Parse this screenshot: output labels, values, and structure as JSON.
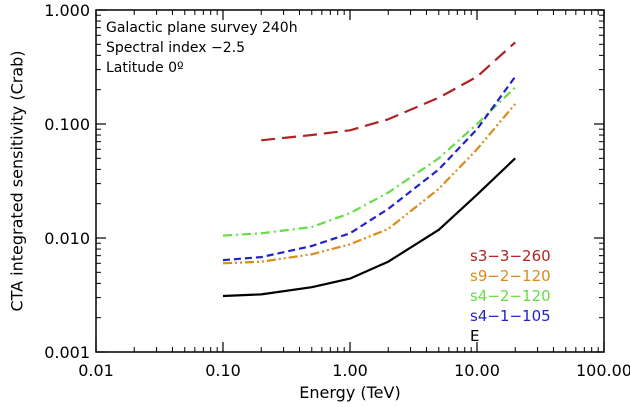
{
  "chart_data": {
    "type": "line",
    "xlabel": "Energy (TeV)",
    "ylabel": "CTA integrated sensitivity (Crab)",
    "xscale": "log",
    "yscale": "log",
    "xlim": [
      0.01,
      100
    ],
    "ylim": [
      0.001,
      1
    ],
    "x_tick_labels": [
      "0.01",
      "0.10",
      "1.00",
      "10.00",
      "100.00"
    ],
    "x_tick_values": [
      0.01,
      0.1,
      1,
      10,
      100
    ],
    "y_tick_labels": [
      "0.001",
      "0.010",
      "0.100",
      "1.000"
    ],
    "y_tick_values": [
      0.001,
      0.01,
      0.1,
      1
    ],
    "annotations": [
      "Galactic plane survey 240h",
      "Spectral index −2.5",
      "Latitude 0º"
    ],
    "legend_position": "bottom-right",
    "series": [
      {
        "name": "s3−3−260",
        "color": "#b22222",
        "style": "long-dash",
        "x": [
          0.2,
          0.5,
          1,
          2,
          5,
          10,
          20
        ],
        "y": [
          0.072,
          0.08,
          0.088,
          0.11,
          0.17,
          0.26,
          0.52
        ]
      },
      {
        "name": "s9−2−120",
        "color": "#d98c1a",
        "style": "dash-dot-dot",
        "x": [
          0.1,
          0.2,
          0.5,
          1,
          2,
          5,
          10,
          20
        ],
        "y": [
          0.006,
          0.0062,
          0.0072,
          0.0088,
          0.012,
          0.027,
          0.06,
          0.15
        ]
      },
      {
        "name": "s4−2−120",
        "color": "#66dd44",
        "style": "dash-dot",
        "x": [
          0.1,
          0.2,
          0.5,
          1,
          2,
          5,
          10,
          20
        ],
        "y": [
          0.0105,
          0.011,
          0.0125,
          0.0165,
          0.025,
          0.05,
          0.1,
          0.21
        ]
      },
      {
        "name": "s4−1−105",
        "color": "#2222cc",
        "style": "short-dash",
        "x": [
          0.1,
          0.2,
          0.5,
          1,
          2,
          5,
          10,
          20
        ],
        "y": [
          0.0064,
          0.0068,
          0.0085,
          0.011,
          0.018,
          0.04,
          0.09,
          0.26
        ]
      },
      {
        "name": "E",
        "color": "#000000",
        "style": "solid",
        "x": [
          0.1,
          0.2,
          0.5,
          1,
          2,
          5,
          10,
          20
        ],
        "y": [
          0.0031,
          0.0032,
          0.0037,
          0.0044,
          0.0062,
          0.0118,
          0.024,
          0.05
        ]
      }
    ]
  }
}
